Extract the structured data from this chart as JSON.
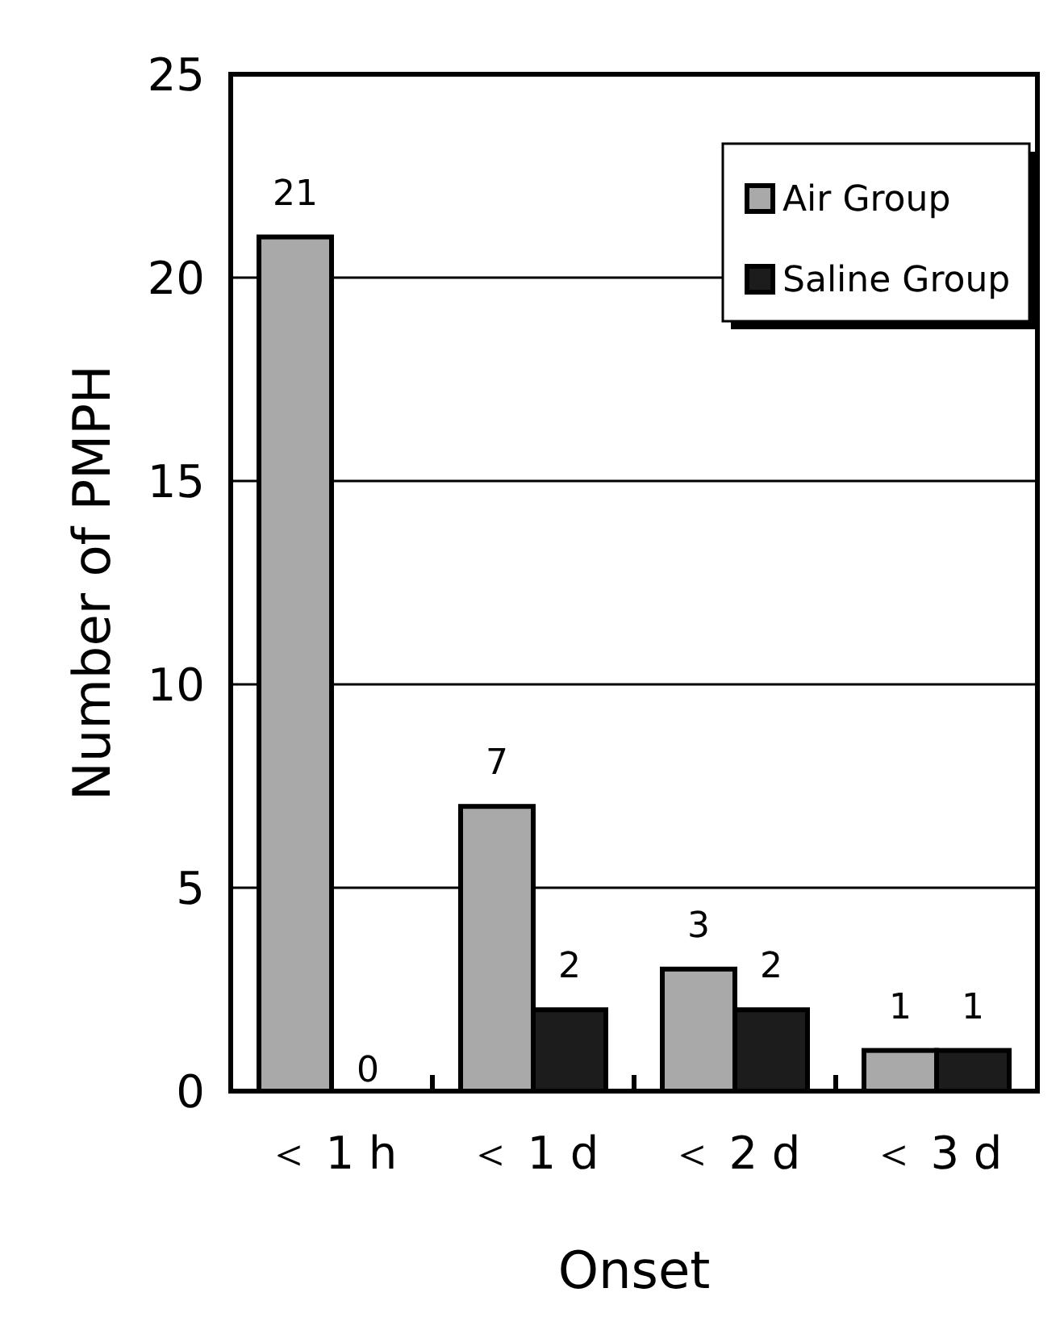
{
  "chart_data": {
    "type": "bar",
    "xlabel": "Onset",
    "ylabel": "Number of PMPH",
    "categories": [
      "＜ 1 h",
      "＜ 1 d",
      "＜ 2 d",
      "＜ 3 d"
    ],
    "series": [
      {
        "name": "Air Group",
        "color": "#a9a9a9",
        "values": [
          21,
          7,
          3,
          1
        ]
      },
      {
        "name": "Saline Group",
        "color": "#1c1c1c",
        "values": [
          0,
          2,
          2,
          1
        ]
      }
    ],
    "ylim": [
      0,
      25
    ],
    "yticks": [
      0,
      5,
      10,
      15,
      20,
      25
    ],
    "grid": "y",
    "legend": "top right",
    "data_labels": true
  }
}
